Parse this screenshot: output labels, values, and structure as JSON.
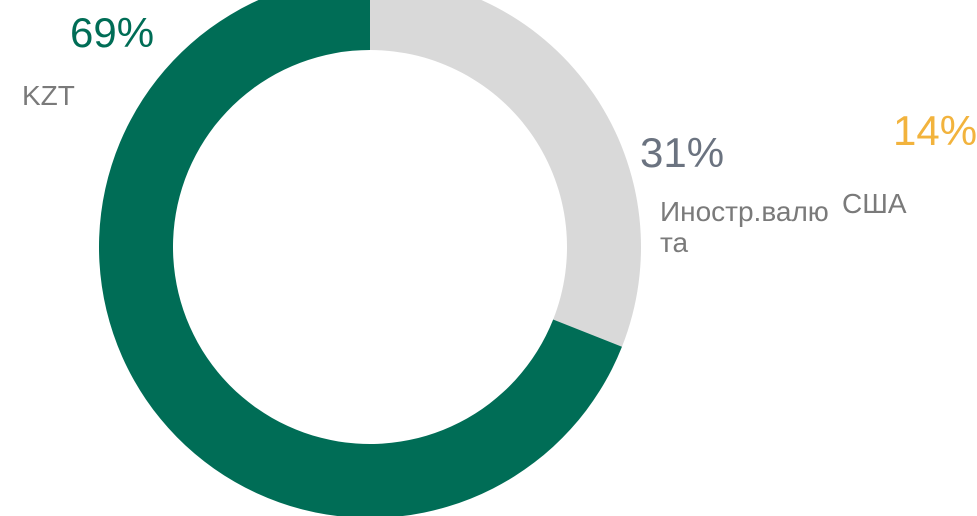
{
  "chart_data": {
    "type": "donut",
    "categories": [
      "Иностр.валюта",
      "KZT"
    ],
    "values": [
      31,
      69
    ],
    "value_labels": [
      "31%",
      "69%"
    ],
    "colors": [
      "#d9d9d9",
      "#006d56"
    ],
    "label_colors": [
      "#6b7380",
      "#006d56"
    ],
    "extra": {
      "name": "США",
      "value": 14,
      "value_label": "14%",
      "color": "#f2b33d"
    }
  }
}
